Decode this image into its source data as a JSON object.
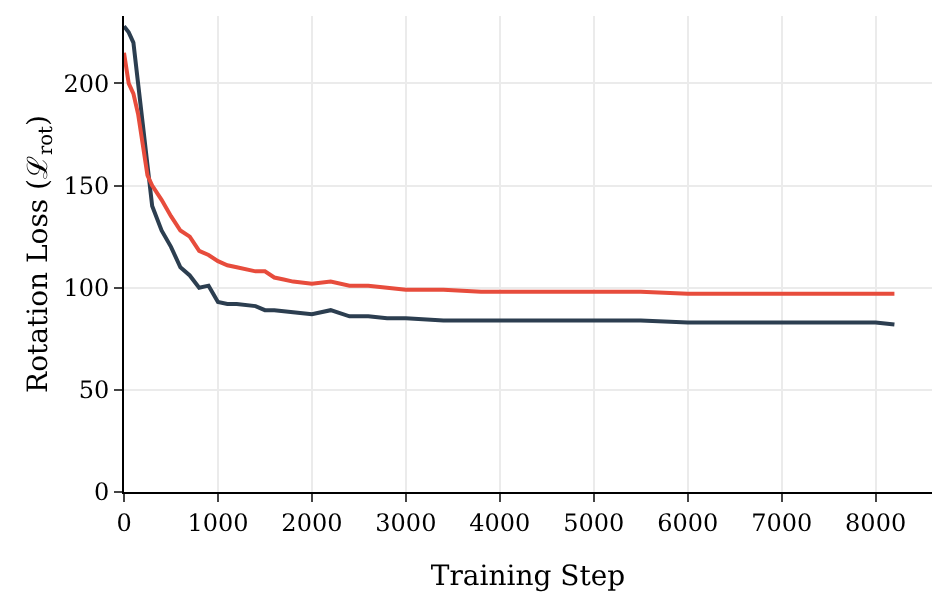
{
  "chart_data": {
    "type": "line",
    "xlabel": "Training Step",
    "ylabel": "Rotation Loss (ℒ$_{rot}$)",
    "grid": true,
    "line_style": "solid",
    "marker": "none",
    "xlim": [
      0,
      8600
    ],
    "xticks": [
      0,
      1000,
      2000,
      3000,
      4000,
      5000,
      6000,
      7000,
      8000
    ],
    "ylim": [
      0,
      233
    ],
    "yticks": [
      0,
      50,
      100,
      150,
      200
    ],
    "series": [
      {
        "color": "#2c3e50",
        "x": [
          0,
          50,
          100,
          150,
          200,
          250,
          300,
          400,
          500,
          600,
          700,
          800,
          900,
          1000,
          1100,
          1200,
          1400,
          1500,
          1600,
          1800,
          2000,
          2200,
          2400,
          2600,
          2800,
          3000,
          3400,
          3800,
          4000,
          4500,
          5000,
          5500,
          6000,
          6500,
          7000,
          7500,
          8000,
          8200
        ],
        "values": [
          228,
          225,
          220,
          200,
          180,
          160,
          140,
          128,
          120,
          110,
          106,
          100,
          101,
          93,
          92,
          92,
          91,
          89,
          89,
          88,
          87,
          89,
          86,
          86,
          85,
          85,
          84,
          84,
          84,
          84,
          84,
          84,
          83,
          83,
          83,
          83,
          83,
          82
        ]
      },
      {
        "color": "#e74c3c",
        "x": [
          0,
          50,
          100,
          150,
          200,
          250,
          300,
          400,
          500,
          600,
          700,
          800,
          900,
          1000,
          1100,
          1200,
          1400,
          1500,
          1600,
          1700,
          1800,
          2000,
          2200,
          2400,
          2600,
          2800,
          3000,
          3400,
          3800,
          4000,
          4500,
          5000,
          5500,
          6000,
          6500,
          7000,
          7500,
          8000,
          8200
        ],
        "values": [
          215,
          200,
          195,
          185,
          170,
          155,
          150,
          143,
          135,
          128,
          125,
          118,
          116,
          113,
          111,
          110,
          108,
          108,
          105,
          104,
          103,
          102,
          103,
          101,
          101,
          100,
          99,
          99,
          98,
          98,
          98,
          98,
          98,
          97,
          97,
          97,
          97,
          97,
          97
        ]
      }
    ]
  }
}
